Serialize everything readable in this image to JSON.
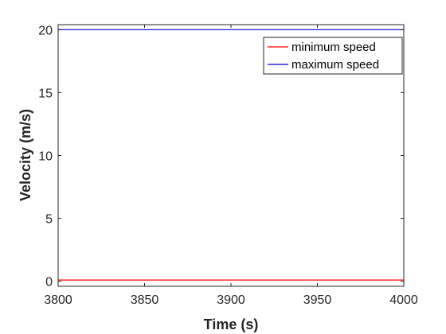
{
  "chart_data": {
    "type": "line",
    "xlabel": "Time (s)",
    "ylabel": "Velocity (m/s)",
    "xlim": [
      3800,
      4000
    ],
    "ylim": [
      -0.4,
      20.4
    ],
    "xticks": [
      3800,
      3850,
      3900,
      3950,
      4000
    ],
    "yticks": [
      0,
      5,
      10,
      15,
      20
    ],
    "legend_position": "top-right",
    "grid": false,
    "series": [
      {
        "name": "minimum speed",
        "color": "#ff0000",
        "x": [
          3800,
          3850,
          3900,
          3950,
          4000
        ],
        "y": [
          0.1,
          0.1,
          0.1,
          0.1,
          0.1
        ]
      },
      {
        "name": "maximum speed",
        "color": "#0000cc",
        "x": [
          3800,
          3850,
          3900,
          3950,
          4000
        ],
        "y": [
          20,
          20,
          20,
          20,
          20
        ]
      }
    ]
  }
}
